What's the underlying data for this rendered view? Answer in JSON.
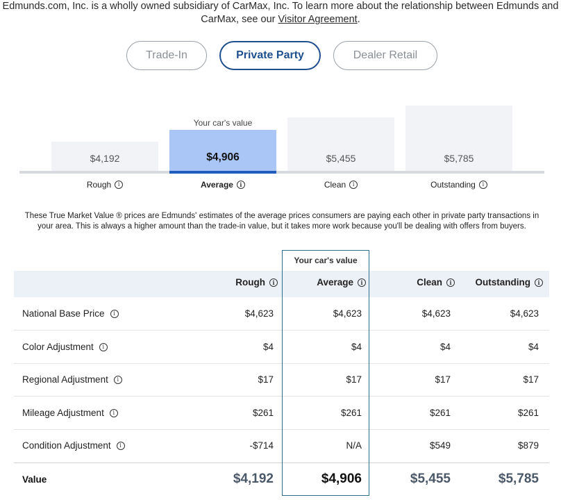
{
  "intro": {
    "line1": "Edmunds.com, Inc. is a wholly owned subsidiary of CarMax, Inc. To learn more about the relationship between Edmunds and",
    "line2_prefix": "CarMax, see our ",
    "link": "Visitor Agreement",
    "line2_suffix": "."
  },
  "tabs": [
    {
      "label": "Trade-In",
      "active": false
    },
    {
      "label": "Private Party",
      "active": true
    },
    {
      "label": "Dealer Retail",
      "active": false
    }
  ],
  "chart": {
    "caption": "Your car's value",
    "bars": [
      {
        "label": "Rough",
        "value": "$4,192"
      },
      {
        "label": "Average",
        "value": "$4,906"
      },
      {
        "label": "Clean",
        "value": "$5,455"
      },
      {
        "label": "Outstanding",
        "value": "$5,785"
      }
    ],
    "selected_index": 1,
    "colors": {
      "selected": "#a9c6f6",
      "bar": "#f1f3f6",
      "accent": "#1f5dbd"
    }
  },
  "note": "These True Market Value ® prices are Edmunds' estimates of the average prices consumers are paying each other in private party transactions in your area. This is always a higher amount than the trade-in value, but it takes more work because you'll be dealing with offers from buyers.",
  "table": {
    "highlight_caption": "Your car's value",
    "columns": [
      "Rough",
      "Average",
      "Clean",
      "Outstanding"
    ],
    "rows": [
      {
        "label": "National Base Price",
        "values": [
          "$4,623",
          "$4,623",
          "$4,623",
          "$4,623"
        ]
      },
      {
        "label": "Color Adjustment",
        "values": [
          "$4",
          "$4",
          "$4",
          "$4"
        ]
      },
      {
        "label": "Regional Adjustment",
        "values": [
          "$17",
          "$17",
          "$17",
          "$17"
        ]
      },
      {
        "label": "Mileage Adjustment",
        "values": [
          "$261",
          "$261",
          "$261",
          "$261"
        ]
      },
      {
        "label": "Condition Adjustment",
        "values": [
          "-$714",
          "N/A",
          "$549",
          "$879"
        ]
      }
    ],
    "total": {
      "label": "Value",
      "values": [
        "$4,192",
        "$4,906",
        "$5,455",
        "$5,785"
      ]
    }
  }
}
